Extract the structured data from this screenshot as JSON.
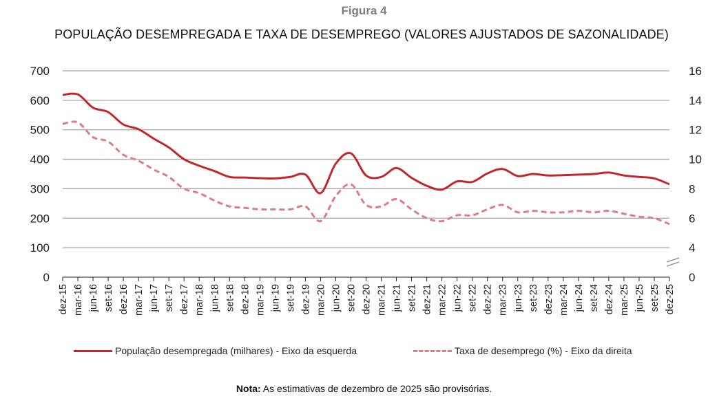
{
  "figure_label": "Figura 4",
  "chart_data": {
    "type": "line",
    "title": "POPULAÇÃO DESEMPREGADA E TAXA DE DESEMPREGO (VALORES AJUSTADOS DE SAZONALIDADE)",
    "xlabel": "",
    "ylabel_left": "",
    "ylabel_right": "",
    "x": [
      "dez-15",
      "mar-16",
      "jun-16",
      "set-16",
      "dez-16",
      "mar-17",
      "jun-17",
      "set-17",
      "dez-17",
      "mar-18",
      "jun-18",
      "set-18",
      "dez-18",
      "mar-19",
      "jun-19",
      "set-19",
      "dez-19",
      "mar-20",
      "jun-20",
      "set-20",
      "dez-20",
      "mar-21",
      "jun-21",
      "set-21",
      "dez-21",
      "mar-22",
      "jun-22",
      "set-22",
      "dez-22",
      "mar-23",
      "jun-23",
      "set-23",
      "dez-23",
      "mar-24",
      "jun-24",
      "set-24",
      "dez-24",
      "mar-25",
      "jun-25",
      "set-25",
      "dez-25"
    ],
    "y_left": {
      "min": 0,
      "max": 700,
      "ticks": [
        "0",
        "100",
        "200",
        "300",
        "400",
        "500",
        "600",
        "700"
      ]
    },
    "y_right": {
      "min": 0,
      "max": 16,
      "ticks": [
        "0",
        "4",
        "6",
        "8",
        "10",
        "12",
        "14",
        "16"
      ],
      "axis_break": "between 0 and 4"
    },
    "grid": true,
    "legend_position": "bottom",
    "series": [
      {
        "name": "População desempregada (milhares) - Eixo da esquerda",
        "axis": "left",
        "style": "solid",
        "color": "#c0272d",
        "values": [
          618,
          620,
          575,
          560,
          518,
          502,
          470,
          440,
          400,
          378,
          360,
          340,
          338,
          336,
          335,
          340,
          348,
          285,
          385,
          420,
          345,
          340,
          370,
          337,
          310,
          297,
          325,
          323,
          352,
          367,
          343,
          350,
          345,
          346,
          348,
          350,
          355,
          345,
          340,
          335,
          315
        ]
      },
      {
        "name": "Taxa de desemprego (%) - Eixo da direita",
        "axis": "right",
        "style": "dashed",
        "color": "#e07b85",
        "values": [
          12.4,
          12.5,
          11.5,
          11.2,
          10.3,
          9.9,
          9.3,
          8.8,
          8.0,
          7.7,
          7.2,
          6.8,
          6.7,
          6.6,
          6.6,
          6.6,
          6.8,
          5.8,
          7.5,
          8.3,
          6.9,
          6.8,
          7.3,
          6.6,
          6.0,
          5.8,
          6.2,
          6.2,
          6.6,
          6.9,
          6.4,
          6.5,
          6.4,
          6.4,
          6.5,
          6.4,
          6.5,
          6.3,
          6.1,
          6.0,
          5.6
        ]
      }
    ]
  },
  "note": {
    "label": "Nota:",
    "text": " As estimativas de dezembro de 2025 são provisórias."
  }
}
